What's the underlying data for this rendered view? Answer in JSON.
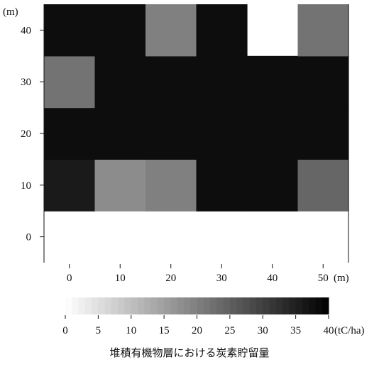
{
  "chart_data": {
    "type": "heatmap",
    "caption": "堆積有機物層における炭素貯留量",
    "x": {
      "unit_label": "(m)",
      "ticks": [
        0,
        10,
        20,
        30,
        40,
        50
      ],
      "tick_labels": [
        "0",
        "10",
        "20",
        "30",
        "40",
        "50"
      ],
      "range": [
        -5,
        55
      ]
    },
    "y": {
      "unit_label": "(m)",
      "ticks": [
        0,
        10,
        20,
        30,
        40
      ],
      "tick_labels": [
        "0",
        "10",
        "20",
        "30",
        "40"
      ],
      "range": [
        -5,
        45
      ]
    },
    "colorbar": {
      "unit_label": "(tC/ha)",
      "ticks": [
        0,
        5,
        10,
        15,
        20,
        25,
        30,
        35,
        40
      ],
      "tick_labels": [
        "0",
        "5",
        "10",
        "15",
        "20",
        "25",
        "30",
        "35",
        "40"
      ],
      "range": [
        0,
        40
      ],
      "color_low": "#ffffff",
      "color_high": "#000000"
    },
    "cell_size_m": 10,
    "x_centers": [
      0,
      10,
      20,
      30,
      40,
      50
    ],
    "y_centers": [
      0,
      10,
      20,
      30,
      40
    ],
    "values": [
      [
        null,
        null,
        null,
        null,
        null,
        null
      ],
      [
        36,
        18,
        20,
        38,
        38,
        24
      ],
      [
        38,
        38,
        38,
        38,
        38,
        38
      ],
      [
        22,
        38,
        38,
        38,
        38,
        38
      ],
      [
        38,
        38,
        20,
        38,
        null,
        22
      ]
    ]
  }
}
